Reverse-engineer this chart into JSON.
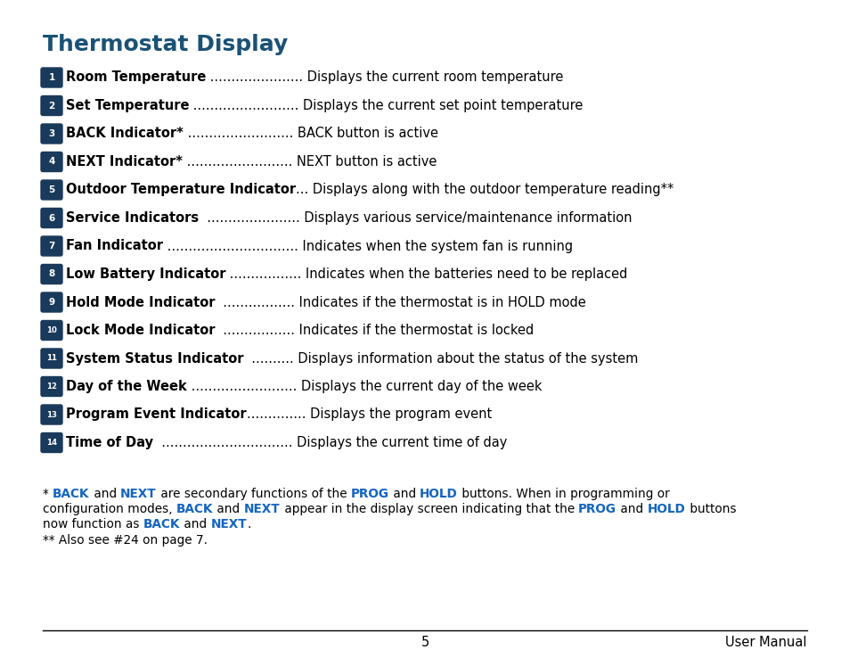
{
  "title": "Thermostat Display",
  "title_color": "#1a5276",
  "title_fontsize": 18,
  "badge_color": "#1a3a5c",
  "badge_text_color": "#ffffff",
  "text_color": "#000000",
  "bg_color": "#ffffff",
  "items": [
    {
      "num": "1",
      "bold_text": "Room Temperature",
      "dots": " ......................",
      "desc": " Displays the current room temperature"
    },
    {
      "num": "2",
      "bold_text": "Set Temperature",
      "dots": " .........................",
      "desc": " Displays the current set point temperature"
    },
    {
      "num": "3",
      "bold_text": "BACK Indicator*",
      "dots": " .........................",
      "desc": " BACK button is active"
    },
    {
      "num": "4",
      "bold_text": "NEXT Indicator*",
      "dots": " .........................",
      "desc": " NEXT button is active"
    },
    {
      "num": "5",
      "bold_text": "Outdoor Temperature Indicator",
      "dots": "...",
      "desc": " Displays along with the outdoor temperature reading**"
    },
    {
      "num": "6",
      "bold_text": "Service Indicators",
      "dots": "  ......................",
      "desc": " Displays various service/maintenance information"
    },
    {
      "num": "7",
      "bold_text": "Fan Indicator",
      "dots": " ...............................",
      "desc": " Indicates when the system fan is running"
    },
    {
      "num": "8",
      "bold_text": "Low Battery Indicator",
      "dots": " .................",
      "desc": " Indicates when the batteries need to be replaced"
    },
    {
      "num": "9",
      "bold_text": "Hold Mode Indicator",
      "dots": "  .................",
      "desc": " Indicates if the thermostat is in HOLD mode"
    },
    {
      "num": "10",
      "bold_text": "Lock Mode Indicator",
      "dots": "  .................",
      "desc": " Indicates if the thermostat is locked"
    },
    {
      "num": "11",
      "bold_text": "System Status Indicator",
      "dots": "  ..........",
      "desc": " Displays information about the status of the system"
    },
    {
      "num": "12",
      "bold_text": "Day of the Week",
      "dots": " .........................",
      "desc": " Displays the current day of the week"
    },
    {
      "num": "13",
      "bold_text": "Program Event Indicator",
      "dots": "..............",
      "desc": " Displays the program event"
    },
    {
      "num": "14",
      "bold_text": "Time of Day",
      "dots": "  ...............................",
      "desc": " Displays the current time of day"
    }
  ],
  "item_fontsize": 10.5,
  "footnote_fontsize": 9.8,
  "page_number": "5",
  "footer_right": "User Manual",
  "highlight_color": "#1565C0"
}
